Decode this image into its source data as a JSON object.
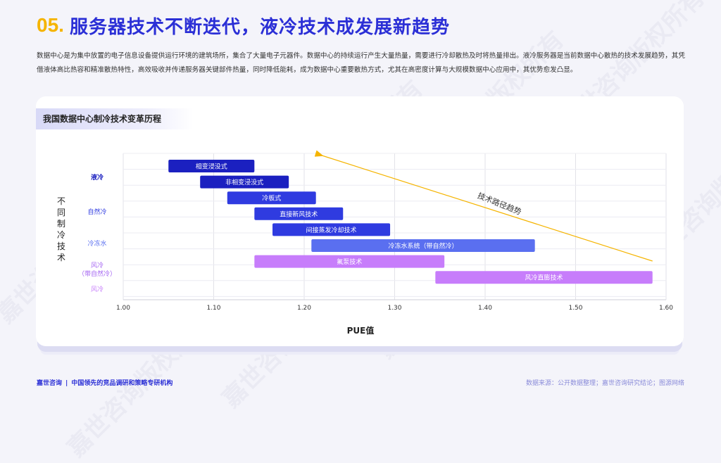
{
  "header": {
    "number": "05.",
    "title": "服务器技术不断迭代，液冷技术成发展新趋势"
  },
  "intro": "数据中心是为集中放置的电子信息设备提供运行环境的建筑场所，集合了大量电子元器件。数据中心的持续运行产生大量热量，需要进行冷却散热及时将热量排出。液冷服务器是当前数据中心散热的技术发展趋势，其凭借液体高比热容和精准散热特性，高效吸收并传递服务器关键部件热量，同时降低能耗，成为数据中心重要散热方式，尤其在高密度计算与大规模数据中心应用中，其优势愈发凸显。",
  "card_title": "我国数据中心制冷技术变革历程",
  "watermark_text": "嘉世咨询版权所有",
  "colors": {
    "brand": "#2b2fd6",
    "accent": "#f5b400",
    "arrow": "#f5b400",
    "purple": "#c77dfb"
  },
  "chart_data": {
    "type": "bar",
    "orientation": "horizontal-range",
    "xlabel": "PUE值",
    "ylabel": "不同制冷技术",
    "xlim": [
      1.0,
      1.6
    ],
    "xticks": [
      "1.00",
      "1.10",
      "1.20",
      "1.30",
      "1.40",
      "1.50",
      "1.60"
    ],
    "grid": true,
    "categories": [
      {
        "label": "液冷",
        "color": "#1b20c0"
      },
      {
        "label": "自然冷",
        "color": "#2f3be0"
      },
      {
        "label": "冷冻水",
        "color": "#5a6ff0"
      },
      {
        "label": "风冷\n（带自然冷）",
        "color": "#a464f2"
      },
      {
        "label": "风冷",
        "color": "#c77dfb"
      }
    ],
    "bars": [
      {
        "name": "相变浸没式",
        "category": "液冷",
        "start": 1.05,
        "end": 1.145,
        "color": "#1b20c0"
      },
      {
        "name": "非相变浸没式",
        "category": "液冷",
        "start": 1.085,
        "end": 1.183,
        "color": "#1b20c0"
      },
      {
        "name": "冷板式",
        "category": "自然冷",
        "start": 1.115,
        "end": 1.213,
        "color": "#2f3be0"
      },
      {
        "name": "直接新风技术",
        "category": "自然冷",
        "start": 1.145,
        "end": 1.243,
        "color": "#2f3be0"
      },
      {
        "name": "间接蒸发冷却技术",
        "category": "自然冷",
        "start": 1.165,
        "end": 1.295,
        "color": "#2f3be0"
      },
      {
        "name": "冷冻水系统（带自然冷）",
        "category": "冷冻水",
        "start": 1.208,
        "end": 1.455,
        "color": "#5a6ff0"
      },
      {
        "name": "氟泵技术",
        "category": "风冷（带自然冷）",
        "start": 1.145,
        "end": 1.355,
        "color": "#c77dfb"
      },
      {
        "name": "风冷直膨技术",
        "category": "风冷",
        "start": 1.345,
        "end": 1.585,
        "color": "#c77dfb"
      }
    ],
    "annotation": {
      "text": "技术路径趋势",
      "from_pue": 1.585,
      "to_pue": 1.215
    }
  },
  "footer": {
    "brand": "嘉世咨询",
    "separator": "|",
    "tagline": "中国领先的竞品调研和策略专研机构",
    "source": "数据来源：公开数据整理；嘉世咨询研究结论；图源网络"
  }
}
